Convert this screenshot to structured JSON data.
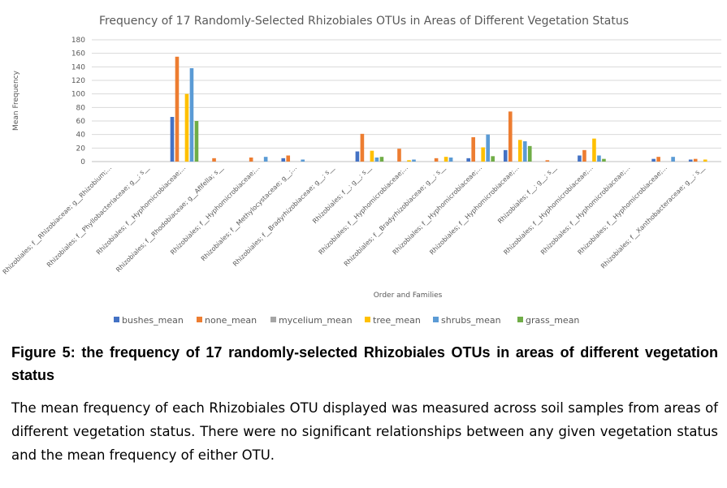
{
  "chart_data": {
    "type": "bar",
    "title": "Frequency of 17 Randomly-Selected Rhizobiales OTUs in Areas of Different Vegetation Status",
    "xlabel": "Order and Families",
    "ylabel": "Mean Frequency",
    "ylim": [
      0,
      180
    ],
    "yticks": [
      0,
      20,
      40,
      60,
      80,
      100,
      120,
      140,
      160,
      180
    ],
    "grid": true,
    "legend_position": "bottom",
    "categories": [
      "Rhizobiales; f__Rhizobiaceae; g__Rhizobium;...",
      "Rhizobiales; f__Phyllobacteriaceae; g__; s__",
      "Rhizobiales; f__Hyphomicrobiaceae;...",
      "Rhizobiales; f__Rhodobiaceae; g__Afifella; s__",
      "Rhizobiales; f__Hyphomicrobiaceae;...",
      "Rhizobiales; f__Methylocystaceae; g__;...",
      "Rhizobiales; f__Bradyrhizobiaceae; g__; s__",
      "Rhizobiales; f__; g__; s__",
      "Rhizobiales; f__Hyphomicrobiaceae;...",
      "Rhizobiales; f__Bradyrhizobiaceae; g__; s__",
      "Rhizobiales; f__Hyphomicrobiaceae;...",
      "Rhizobiales; f__Hyphomicrobiaceae;...",
      "Rhizobiales; f__; g__; s__",
      "Rhizobiales; f__Hyphomicrobiaceae;...",
      "Rhizobiales; f__Hyphomicrobiaceae;...",
      "Rhizobiales; f__Hyphomicrobiaceae;...",
      "Rhizobiales; f__Xanthobacteraceae; g__; s__"
    ],
    "series": [
      {
        "name": "bushes_mean",
        "color": "#4472C4",
        "values": [
          0,
          0,
          66,
          0,
          0,
          5,
          0,
          15,
          0,
          0,
          5,
          17,
          0,
          9,
          0,
          4,
          3
        ]
      },
      {
        "name": "none_mean",
        "color": "#ED7D31",
        "values": [
          0,
          0,
          155,
          5,
          6,
          9,
          0,
          41,
          19,
          5,
          36,
          74,
          2,
          17,
          0,
          7,
          4
        ]
      },
      {
        "name": "mycelium_mean",
        "color": "#A5A5A5",
        "values": [
          0,
          0,
          0,
          0,
          0,
          0,
          0,
          0,
          0,
          0,
          0,
          0,
          0,
          0,
          0,
          0,
          0
        ]
      },
      {
        "name": "tree_mean",
        "color": "#FFC000",
        "values": [
          0,
          0,
          100,
          0,
          0,
          0,
          0,
          16,
          2,
          7,
          21,
          32,
          0,
          34,
          0,
          0,
          3
        ]
      },
      {
        "name": "shrubs_mean",
        "color": "#5B9BD5",
        "values": [
          0,
          0,
          138,
          0,
          7,
          3,
          0,
          6,
          3,
          6,
          40,
          30,
          0,
          9,
          0,
          7,
          0
        ]
      },
      {
        "name": "grass_mean",
        "color": "#70AD47",
        "values": [
          0,
          0,
          60,
          0,
          0,
          0,
          0,
          7,
          0,
          0,
          8,
          23,
          0,
          4,
          0,
          0,
          0
        ]
      }
    ]
  },
  "caption": {
    "title": "Figure 5: the frequency of 17 randomly-selected Rhizobiales OTUs in areas of different vegetation status",
    "body": "The mean frequency of each Rhizobiales OTU displayed was measured across soil samples from areas of different vegetation status. There were no significant relationships between any given vegetation status and the mean frequency of either OTU."
  }
}
